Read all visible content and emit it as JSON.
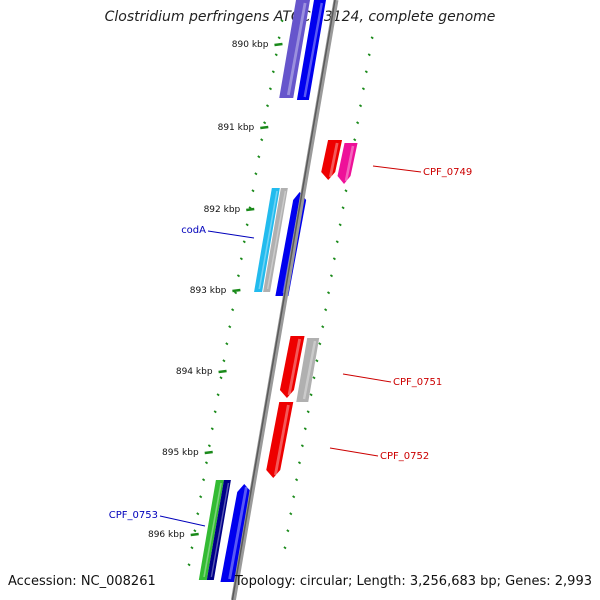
{
  "title": "Clostridium perfringens ATCC 13124, complete genome",
  "footer": {
    "accession": "Accession: NC_008261",
    "summary": "Topology: circular; Length: 3,256,683 bp; Genes: 2,993"
  },
  "colors": {
    "backbone": "#7a7a7a",
    "tick": "#1a8a1a",
    "gene_blue": "#0000ee",
    "gene_red": "#ee0000",
    "gene_magenta": "#ee1199",
    "gene_gray": "#b0b0b0",
    "gene_cyan": "#22bbee",
    "gene_green": "#33bb33",
    "gene_navy": "#000088",
    "gene_purple": "#6655cc",
    "label_blue": "#0000bb",
    "label_red": "#cc0000"
  },
  "ticks": [
    {
      "label": "890 kbp",
      "value": 890
    },
    {
      "label": "891 kbp",
      "value": 891
    },
    {
      "label": "892 kbp",
      "value": 892
    },
    {
      "label": "893 kbp",
      "value": 893
    },
    {
      "label": "894 kbp",
      "value": 894
    },
    {
      "label": "895 kbp",
      "value": 895
    },
    {
      "label": "896 kbp",
      "value": 896
    }
  ],
  "gene_labels": [
    {
      "text": "codA",
      "strand": "minus",
      "color": "label_blue"
    },
    {
      "text": "CPF_0749",
      "strand": "plus",
      "color": "label_red"
    },
    {
      "text": "CPF_0751",
      "strand": "plus",
      "color": "label_red"
    },
    {
      "text": "CPF_0752",
      "strand": "plus",
      "color": "label_red"
    },
    {
      "text": "CPF_0753",
      "strand": "minus",
      "color": "label_blue"
    }
  ]
}
